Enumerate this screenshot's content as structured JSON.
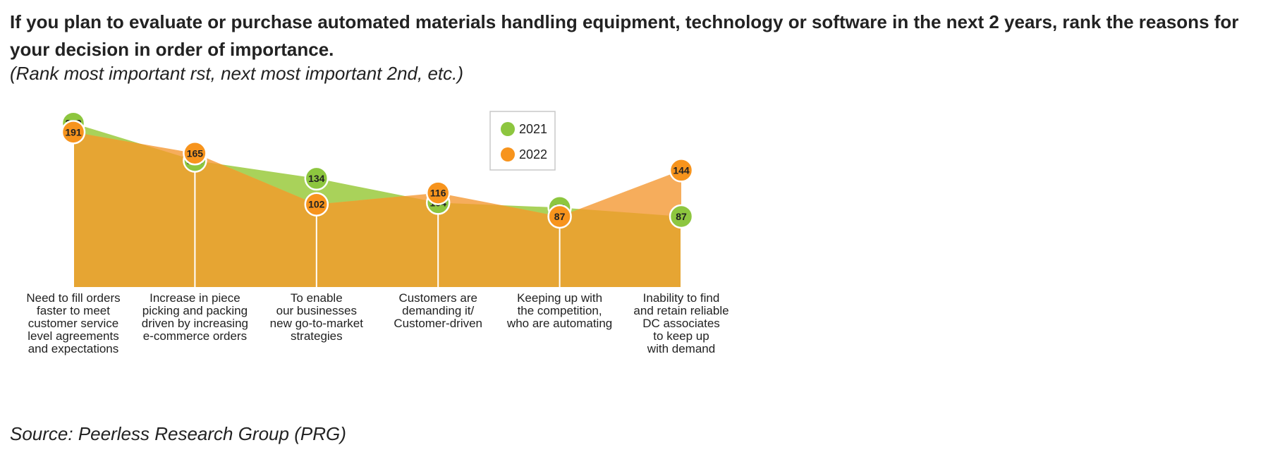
{
  "header": {
    "title": "If you plan to evaluate or purchase automated materials handling equipment, technology or software in the next 2 years, rank the reasons for your decision in order of importance.",
    "subtitle": "(Rank most important rst, next most important 2nd, etc.)"
  },
  "footer": {
    "source": "Source: Peerless Research Group (PRG)"
  },
  "chart_data": {
    "type": "area",
    "categories": [
      "Need to fill orders faster to meet customer service level agreements and expectations",
      "Increase in piece picking and packing driven by increasing e-commerce orders",
      "To enable our businesses new go-to-market strategies",
      "Customers are demanding it/ Customer-driven",
      "Keeping up with the competition, who are automating",
      "Inability to find and retain reliable DC associates to keep up with demand"
    ],
    "category_lines": [
      [
        "Need to fill orders",
        "faster to meet",
        "customer service",
        "level agreements",
        "and expectations"
      ],
      [
        "Increase in piece",
        "picking and packing",
        "driven by increasing",
        "e-commerce orders"
      ],
      [
        "To enable",
        "our businesses",
        "new go-to-market",
        "strategies"
      ],
      [
        "Customers are",
        "demanding it/",
        "Customer-driven"
      ],
      [
        "Keeping up with",
        "the competition,",
        "who are automating"
      ],
      [
        "Inability to find",
        "and retain reliable",
        "DC associates",
        "to keep up",
        "with demand"
      ]
    ],
    "series": [
      {
        "name": "2021",
        "values": [
          202,
          156,
          134,
          104,
          98,
          87
        ],
        "color": "#8dc63f",
        "fill": "#a9d25a"
      },
      {
        "name": "2022",
        "values": [
          191,
          165,
          102,
          116,
          87,
          144
        ],
        "color": "#f7941d",
        "fill": "#f6ad5c"
      }
    ],
    "overlap_color": "#e6a533",
    "ylim": [
      0,
      210
    ],
    "legend": {
      "position": "top-right",
      "entries": [
        "2021",
        "2022"
      ]
    },
    "grid": false
  }
}
